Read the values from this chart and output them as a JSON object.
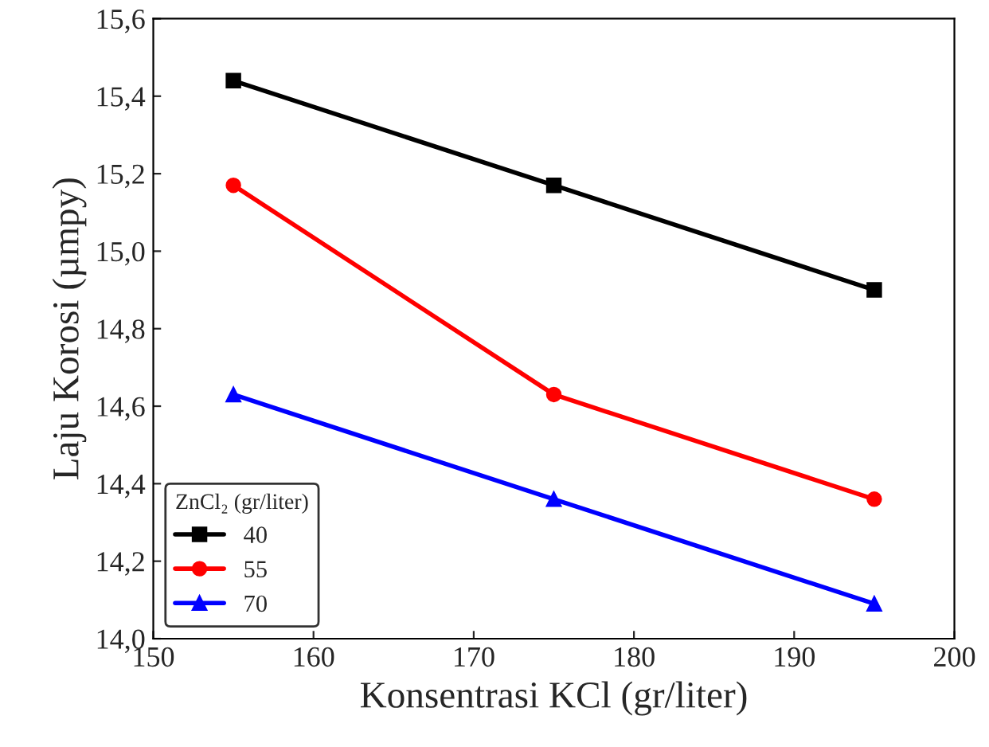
{
  "chart_data": {
    "type": "line",
    "xlabel": "Konsentrasi KCl (gr/liter)",
    "ylabel": "Laju Korosi (µmpy)",
    "legend_title": "ZnCl₂ (gr/liter)",
    "x": [
      155,
      175,
      195
    ],
    "series": [
      {
        "name": "40",
        "color": "#000000",
        "marker": "square",
        "values": [
          15.44,
          15.17,
          14.9
        ]
      },
      {
        "name": "55",
        "color": "#ff0000",
        "marker": "circle",
        "values": [
          15.17,
          14.63,
          14.36
        ]
      },
      {
        "name": "70",
        "color": "#0000ff",
        "marker": "triangle",
        "values": [
          14.63,
          14.36,
          14.09
        ]
      }
    ],
    "xlim": [
      150,
      200
    ],
    "xticks": [
      150,
      160,
      170,
      180,
      190,
      200
    ],
    "ylim": [
      14.0,
      15.6
    ],
    "yticks": [
      {
        "value": 14.0,
        "label": "14,0"
      },
      {
        "value": 14.2,
        "label": "14,2"
      },
      {
        "value": 14.4,
        "label": "14,4"
      },
      {
        "value": 14.6,
        "label": "14,6"
      },
      {
        "value": 14.8,
        "label": "14,8"
      },
      {
        "value": 15.0,
        "label": "15,0"
      },
      {
        "value": 15.2,
        "label": "15,2"
      },
      {
        "value": 15.4,
        "label": "15,4"
      },
      {
        "value": 15.6,
        "label": "15,6"
      }
    ],
    "legend": "bottom left",
    "grid": false,
    "line_style": "solid"
  }
}
